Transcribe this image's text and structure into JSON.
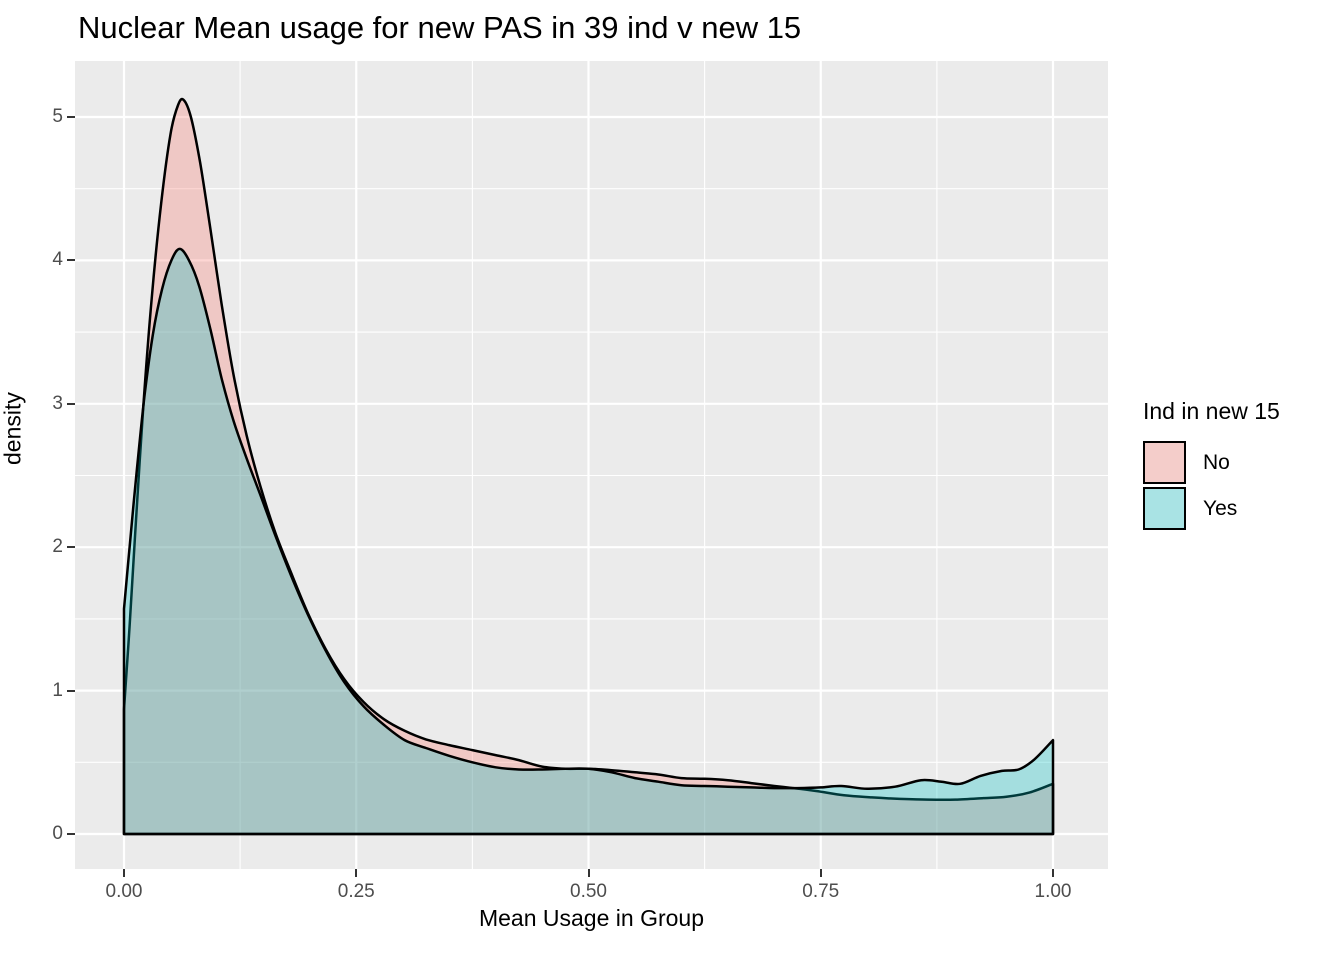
{
  "title": "Nuclear Mean usage for new PAS in 39 ind v new 15",
  "axes": {
    "x_title": "Mean Usage in Group",
    "y_title": "density"
  },
  "legend": {
    "title": "Ind in new 15",
    "position": "right",
    "entries": [
      {
        "label": "No",
        "swatch": "#F4CDCA"
      },
      {
        "label": "Yes",
        "swatch": "#A9E3E4"
      }
    ]
  },
  "colors": {
    "panel_bg": "#EBEBEB",
    "grid": "#FFFFFF",
    "outline": "#000000",
    "tick_mark": "#333333",
    "tick_label": "#4D4D4D",
    "series_no_fill": "rgba(248,118,109,0.3)",
    "series_yes_fill": "rgba(0,191,196,0.3)",
    "series_no_base": "#F8766D",
    "series_yes_base": "#00BFC4"
  },
  "chart_data": {
    "type": "area",
    "subtype": "overlapping-density",
    "title": "Nuclear Mean usage for new PAS in 39 ind v new 15",
    "xlabel": "Mean Usage in Group",
    "ylabel": "density",
    "xlim": [
      0,
      1
    ],
    "ylim": [
      0,
      5
    ],
    "grid": true,
    "legend_position": "right",
    "x_ticks": {
      "values": [
        0,
        0.25,
        0.5,
        0.75,
        1.0
      ],
      "labels": [
        "0.00",
        "0.25",
        "0.50",
        "0.75",
        "1.00"
      ]
    },
    "y_ticks": {
      "values": [
        0,
        1,
        2,
        3,
        4,
        5
      ],
      "labels": [
        "0",
        "1",
        "2",
        "3",
        "4",
        "5"
      ]
    },
    "x_minor": [
      0.125,
      0.375,
      0.625,
      0.875
    ],
    "y_minor": [
      0.5,
      1.5,
      2.5,
      3.5,
      4.5
    ],
    "series": [
      {
        "name": "No",
        "color": "#F8766D",
        "fill_alpha": 0.3,
        "peak": {
          "x": 0.064,
          "density": 5.12
        },
        "points": [
          [
            0.0,
            0.87
          ],
          [
            0.006,
            1.45
          ],
          [
            0.013,
            2.2
          ],
          [
            0.021,
            3.0
          ],
          [
            0.03,
            3.75
          ],
          [
            0.04,
            4.4
          ],
          [
            0.05,
            4.88
          ],
          [
            0.058,
            5.08
          ],
          [
            0.064,
            5.12
          ],
          [
            0.072,
            5.0
          ],
          [
            0.082,
            4.68
          ],
          [
            0.093,
            4.22
          ],
          [
            0.105,
            3.7
          ],
          [
            0.118,
            3.2
          ],
          [
            0.132,
            2.78
          ],
          [
            0.147,
            2.42
          ],
          [
            0.163,
            2.1
          ],
          [
            0.18,
            1.82
          ],
          [
            0.198,
            1.54
          ],
          [
            0.217,
            1.29
          ],
          [
            0.237,
            1.08
          ],
          [
            0.258,
            0.92
          ],
          [
            0.28,
            0.8
          ],
          [
            0.302,
            0.72
          ],
          [
            0.325,
            0.66
          ],
          [
            0.35,
            0.62
          ],
          [
            0.375,
            0.585
          ],
          [
            0.4,
            0.55
          ],
          [
            0.425,
            0.515
          ],
          [
            0.45,
            0.47
          ],
          [
            0.475,
            0.455
          ],
          [
            0.5,
            0.455
          ],
          [
            0.525,
            0.445
          ],
          [
            0.55,
            0.43
          ],
          [
            0.575,
            0.415
          ],
          [
            0.6,
            0.39
          ],
          [
            0.625,
            0.385
          ],
          [
            0.65,
            0.375
          ],
          [
            0.675,
            0.355
          ],
          [
            0.7,
            0.335
          ],
          [
            0.72,
            0.32
          ],
          [
            0.745,
            0.3
          ],
          [
            0.775,
            0.27
          ],
          [
            0.805,
            0.255
          ],
          [
            0.835,
            0.245
          ],
          [
            0.865,
            0.24
          ],
          [
            0.895,
            0.24
          ],
          [
            0.925,
            0.25
          ],
          [
            0.95,
            0.26
          ],
          [
            0.975,
            0.29
          ],
          [
            1.0,
            0.35
          ]
        ]
      },
      {
        "name": "Yes",
        "color": "#00BFC4",
        "fill_alpha": 0.3,
        "peak": {
          "x": 0.06,
          "density": 4.08
        },
        "points": [
          [
            0.0,
            1.57
          ],
          [
            0.006,
            2.0
          ],
          [
            0.014,
            2.55
          ],
          [
            0.022,
            3.05
          ],
          [
            0.031,
            3.48
          ],
          [
            0.041,
            3.8
          ],
          [
            0.051,
            4.0
          ],
          [
            0.06,
            4.08
          ],
          [
            0.07,
            4.0
          ],
          [
            0.081,
            3.82
          ],
          [
            0.093,
            3.52
          ],
          [
            0.105,
            3.18
          ],
          [
            0.118,
            2.88
          ],
          [
            0.132,
            2.62
          ],
          [
            0.147,
            2.36
          ],
          [
            0.163,
            2.08
          ],
          [
            0.18,
            1.8
          ],
          [
            0.198,
            1.53
          ],
          [
            0.217,
            1.28
          ],
          [
            0.237,
            1.06
          ],
          [
            0.258,
            0.89
          ],
          [
            0.28,
            0.76
          ],
          [
            0.302,
            0.655
          ],
          [
            0.325,
            0.6
          ],
          [
            0.35,
            0.545
          ],
          [
            0.375,
            0.5
          ],
          [
            0.4,
            0.465
          ],
          [
            0.425,
            0.45
          ],
          [
            0.45,
            0.45
          ],
          [
            0.475,
            0.455
          ],
          [
            0.5,
            0.455
          ],
          [
            0.525,
            0.43
          ],
          [
            0.55,
            0.39
          ],
          [
            0.575,
            0.365
          ],
          [
            0.6,
            0.34
          ],
          [
            0.625,
            0.335
          ],
          [
            0.65,
            0.33
          ],
          [
            0.675,
            0.325
          ],
          [
            0.7,
            0.32
          ],
          [
            0.725,
            0.32
          ],
          [
            0.75,
            0.325
          ],
          [
            0.772,
            0.335
          ],
          [
            0.8,
            0.315
          ],
          [
            0.83,
            0.33
          ],
          [
            0.858,
            0.375
          ],
          [
            0.88,
            0.365
          ],
          [
            0.9,
            0.35
          ],
          [
            0.922,
            0.405
          ],
          [
            0.945,
            0.44
          ],
          [
            0.963,
            0.45
          ],
          [
            0.98,
            0.52
          ],
          [
            1.0,
            0.655
          ]
        ]
      }
    ]
  }
}
